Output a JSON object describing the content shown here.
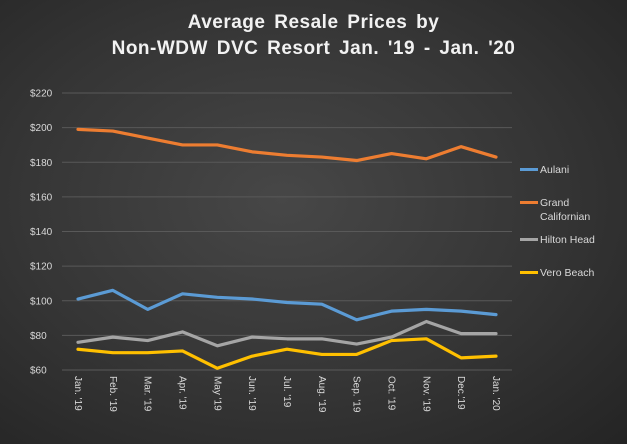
{
  "chart_data": {
    "type": "line",
    "title": [
      "Average Resale Prices by",
      "Non-WDW  DVC Resort Jan. '19 - Jan. '20"
    ],
    "xlabel": "",
    "ylabel": "",
    "categories": [
      "Jan. '19",
      "Feb. '19",
      "Mar. '19",
      "Apr. '19",
      "May '19",
      "Jun. '19",
      "Jul. '19",
      "Aug. '19",
      "Sep. '19",
      "Oct. '19",
      "Nov. '19",
      "Dec.'19",
      "Jan. '20"
    ],
    "yticks": [
      "$60",
      "$80",
      "$100",
      "$120",
      "$140",
      "$160",
      "$180",
      "$200",
      "$220"
    ],
    "ylim": [
      60,
      220
    ],
    "grid": true,
    "legend_position": "right",
    "series": [
      {
        "name": "Aulani",
        "color": "#5b9bd5",
        "values": [
          101,
          106,
          95,
          104,
          102,
          101,
          99,
          98,
          89,
          94,
          95,
          94,
          92
        ]
      },
      {
        "name": "Grand Californian",
        "color": "#ed7d31",
        "values": [
          199,
          198,
          194,
          190,
          190,
          186,
          184,
          183,
          181,
          185,
          182,
          189,
          183
        ]
      },
      {
        "name": "Hilton Head",
        "color": "#a5a5a5",
        "values": [
          76,
          79,
          77,
          82,
          74,
          79,
          78,
          78,
          75,
          79,
          88,
          81,
          81
        ]
      },
      {
        "name": "Vero Beach",
        "color": "#ffc000",
        "values": [
          72,
          70,
          70,
          71,
          61,
          68,
          72,
          69,
          69,
          77,
          78,
          67,
          68
        ]
      }
    ]
  }
}
